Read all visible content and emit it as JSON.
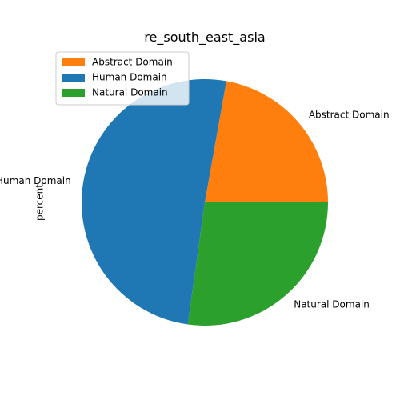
{
  "chart_data": {
    "type": "pie",
    "title": "re_south_east_asia",
    "ylabel": "percent",
    "categories": [
      "Abstract Domain",
      "Human Domain",
      "Natural Domain"
    ],
    "values": [
      22.2,
      50.6,
      27.2
    ],
    "colors": [
      "#ff7f0e",
      "#1f77b4",
      "#2ca02c"
    ],
    "legend": {
      "placement": "top-left",
      "entries": [
        "Abstract Domain",
        "Human Domain",
        "Natural Domain"
      ],
      "colors": [
        "#ff7f0e",
        "#1f77b4",
        "#2ca02c"
      ]
    },
    "start_angle_deg": 0,
    "direction": "counterclockwise"
  }
}
